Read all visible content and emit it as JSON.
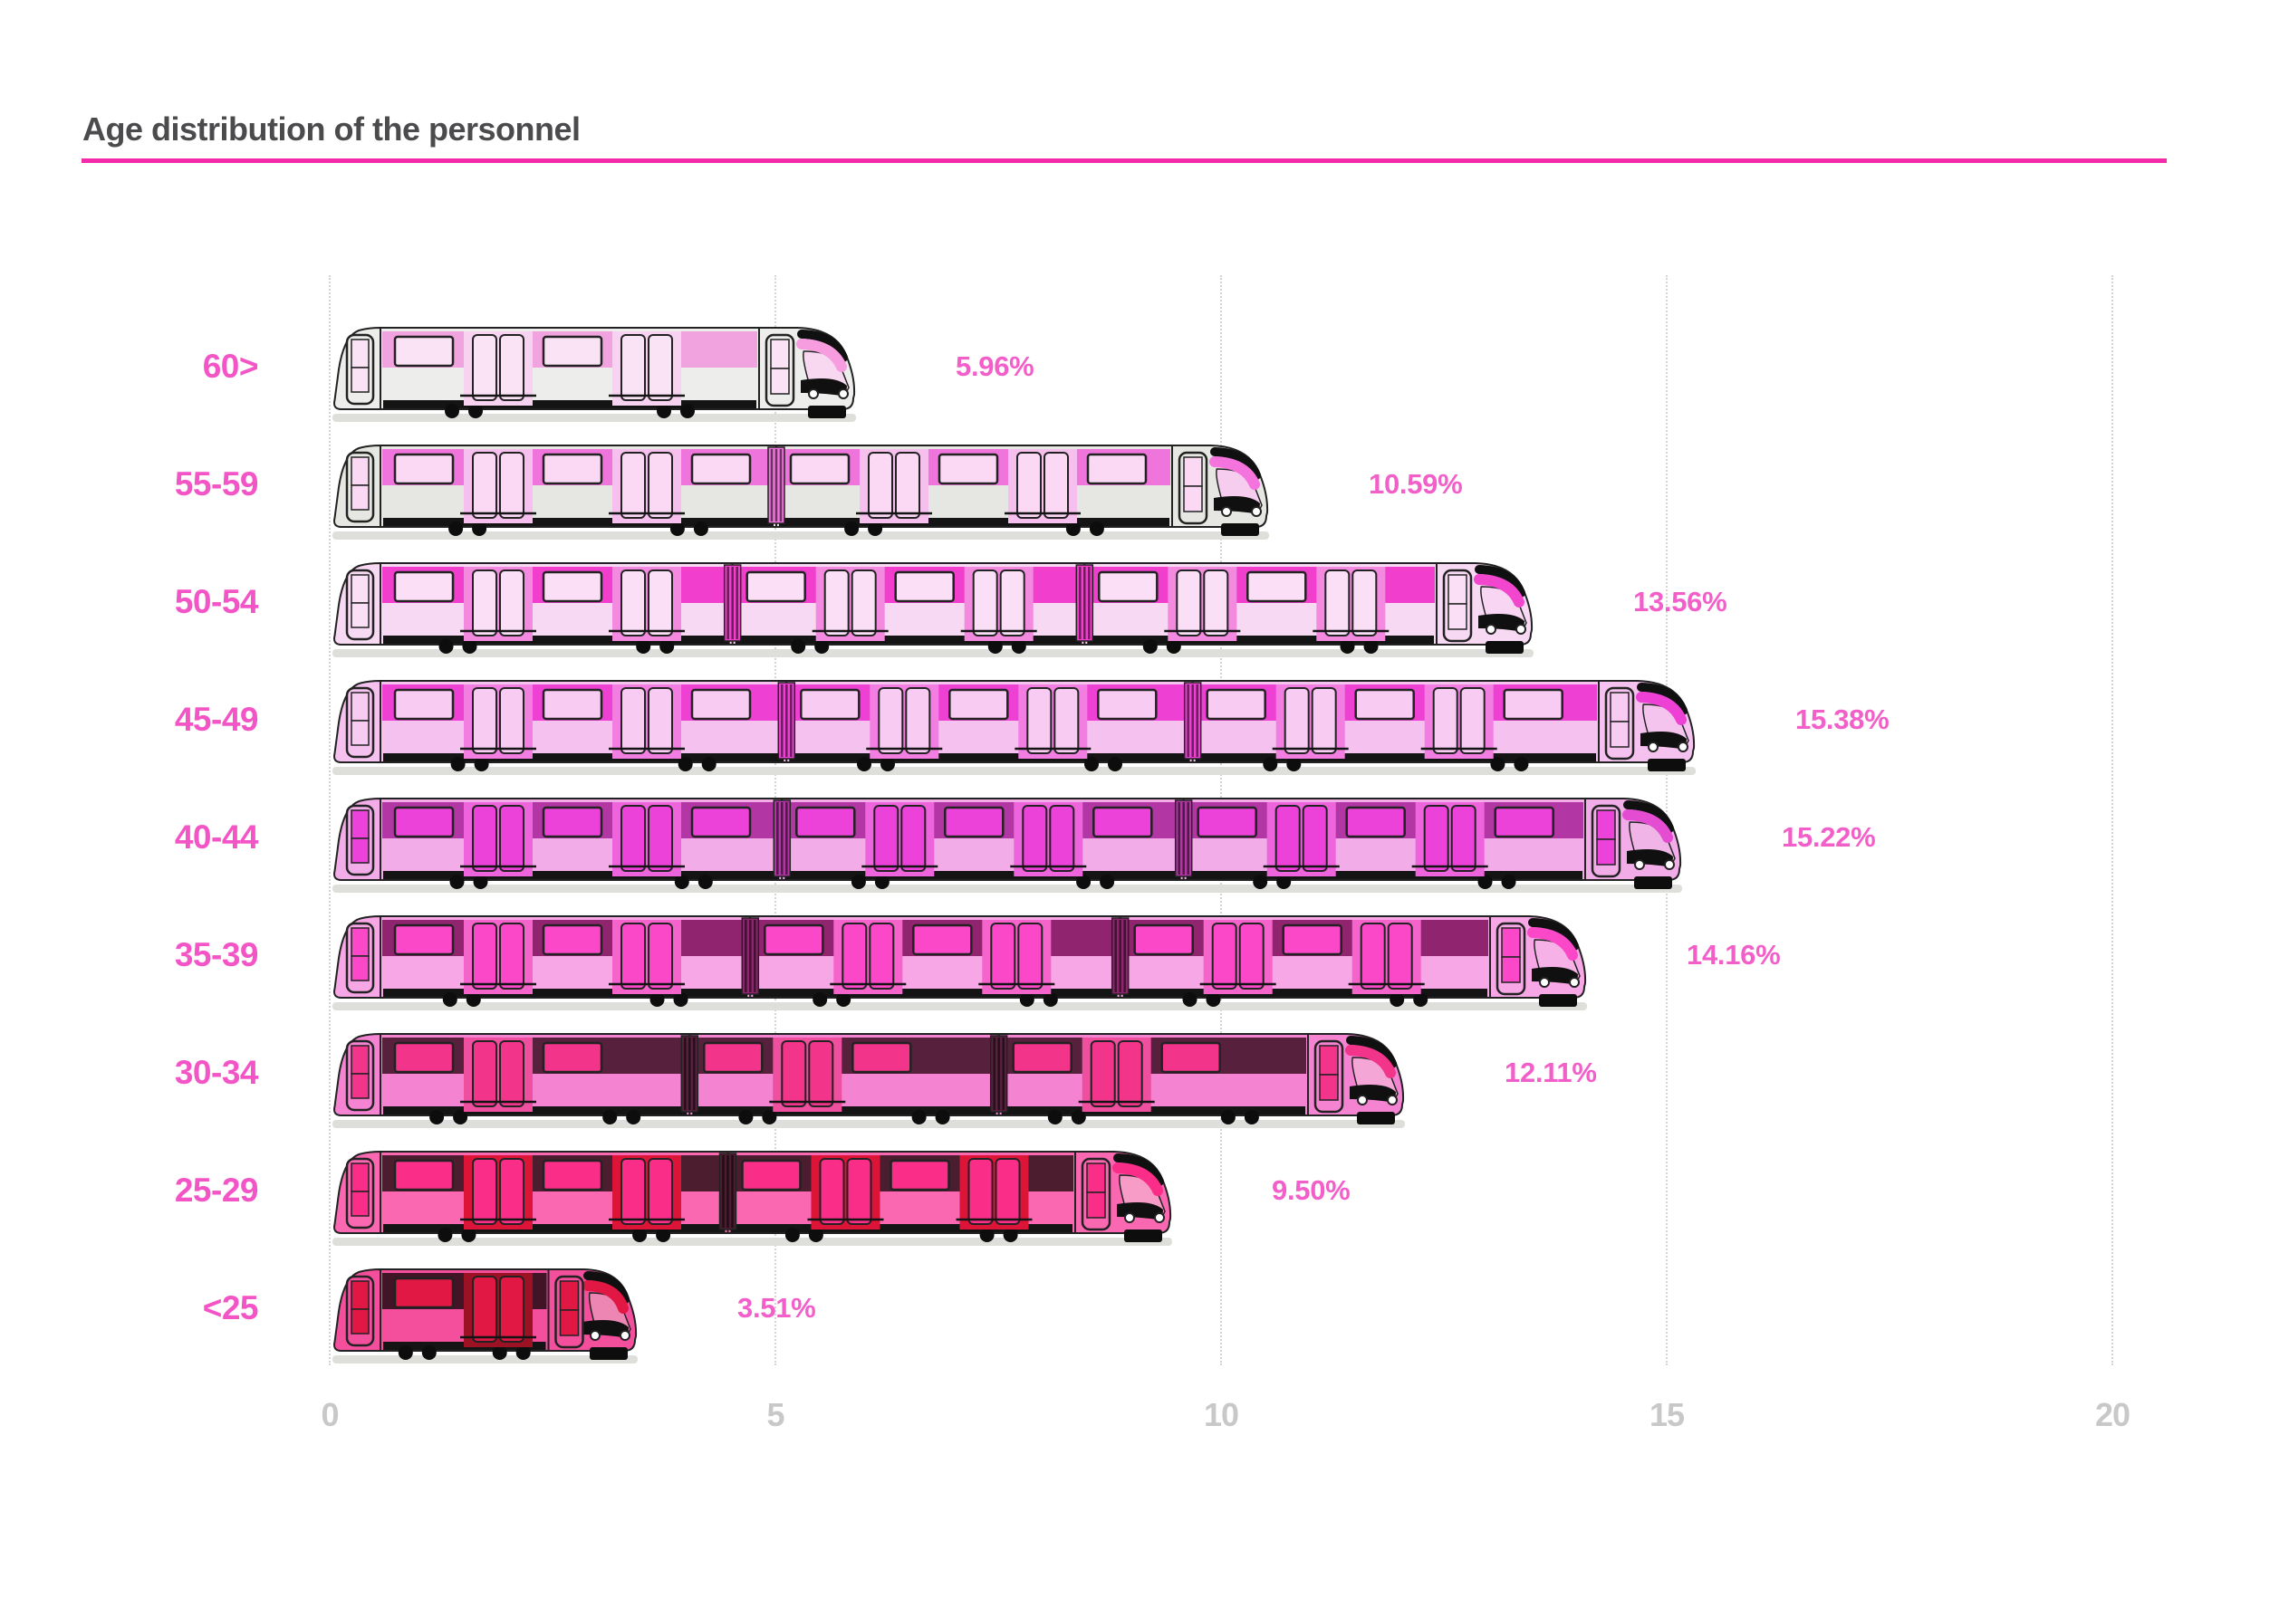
{
  "header": {
    "title": "Age distribution of the personnel"
  },
  "colors": {
    "title_text": "#4b4b4d",
    "accent_line": "#f32ba8",
    "category_label": "#f355c6",
    "value_label": "#f35fc9",
    "axis_text": "#c8c8c9",
    "gridline": "#d4d4d4"
  },
  "chart_data": {
    "type": "bar",
    "orientation": "horizontal",
    "pictogram": "train",
    "title": "Age distribution of the personnel",
    "categories": [
      "60>",
      "55-59",
      "50-54",
      "45-49",
      "40-44",
      "35-39",
      "30-34",
      "25-29",
      "<25"
    ],
    "values": [
      5.96,
      10.59,
      13.56,
      15.38,
      15.22,
      14.16,
      12.11,
      9.5,
      3.51
    ],
    "value_labels": [
      "5.96%",
      "10.59%",
      "13.56%",
      "15.38%",
      "15.22%",
      "14.16%",
      "12.11%",
      "9.50%",
      "3.51%"
    ],
    "units": "percent of personnel",
    "x_ticks": [
      0,
      5,
      10,
      15,
      20
    ],
    "x_tick_labels": [
      "0",
      "5",
      "10",
      "15",
      "20"
    ],
    "xlim": [
      0,
      20
    ],
    "grid": "dotted-vertical",
    "legend": "none",
    "cars_per_train": [
      1,
      2,
      3,
      3,
      3,
      3,
      3,
      2,
      1
    ],
    "train_styles": [
      {
        "body": "#ededeb",
        "band": "#f1a3df",
        "window": "#fbe3f6",
        "door": "#f8d3f1",
        "cab": "#f79cdf",
        "glass": "#f8d8f0"
      },
      {
        "body": "#e6e7e3",
        "band": "#ef74dc",
        "window": "#fbd8f4",
        "door": "#f6bfee",
        "cab": "#f573dc",
        "glass": "#f6cdee"
      },
      {
        "body": "#f8d9f3",
        "band": "#f13ecc",
        "window": "#fadff7",
        "door": "#f489e0",
        "cab": "#f246ce",
        "glass": "#f8d5f2"
      },
      {
        "body": "#f5c1ee",
        "band": "#ef40d4",
        "window": "#f8cbf2",
        "door": "#f37ee2",
        "cab": "#ee40d4",
        "glass": "#f4c4ee"
      },
      {
        "body": "#f2ace8",
        "band": "#b237a5",
        "window": "#ec42d9",
        "door": "#ee64dc",
        "cab": "#e44cd2",
        "glass": "#f0b4e6"
      },
      {
        "body": "#f7a7e5",
        "band": "#90246f",
        "window": "#fa48c8",
        "door": "#f564cb",
        "cab": "#fa48c8",
        "glass": "#f6b2e6"
      },
      {
        "body": "#f484d1",
        "band": "#57203d",
        "window": "#f2348b",
        "door": "#ef4f9f",
        "cab": "#f2348b",
        "glass": "#f4a6d6"
      },
      {
        "body": "#f968b1",
        "band": "#4b1d2f",
        "window": "#fa2d88",
        "door": "#dc1437",
        "cab": "#fa2d88",
        "glass": "#f69cc6"
      },
      {
        "body": "#f44f9d",
        "band": "#411426",
        "window": "#e01843",
        "door": "#9c1123",
        "cab": "#e01843",
        "glass": "#ee86b4"
      }
    ]
  }
}
